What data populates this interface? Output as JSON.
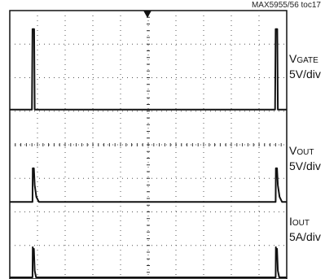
{
  "reference": "MAX5955/56 toc17",
  "colors": {
    "trace": "#111111",
    "grid": "#555555",
    "frame": "#111111"
  },
  "chart_data": {
    "type": "line",
    "grid": true,
    "grid_divisions": {
      "x": 10,
      "y": 8
    },
    "x_range_div": [
      0,
      10
    ],
    "channels": [
      {
        "symbol": "V",
        "subscript": "GATE",
        "scale": "5V/div",
        "baseline_div": 5.0,
        "points": [
          [
            0,
            0
          ],
          [
            0.8,
            0
          ],
          [
            0.82,
            2.4
          ],
          [
            0.88,
            2.4
          ],
          [
            0.9,
            0
          ],
          [
            9.58,
            0
          ],
          [
            9.6,
            2.4
          ],
          [
            9.66,
            2.4
          ],
          [
            9.68,
            0
          ],
          [
            10,
            0
          ]
        ]
      },
      {
        "symbol": "V",
        "subscript": "OUT",
        "scale": "5V/div",
        "baseline_div": 2.25,
        "points": [
          [
            0,
            0
          ],
          [
            0.82,
            0
          ],
          [
            0.83,
            1.0
          ],
          [
            0.87,
            1.0
          ],
          [
            0.9,
            0.5
          ],
          [
            0.96,
            0.15
          ],
          [
            1.05,
            0
          ],
          [
            9.6,
            0
          ],
          [
            9.61,
            1.0
          ],
          [
            9.65,
            1.0
          ],
          [
            9.68,
            0.5
          ],
          [
            9.74,
            0.15
          ],
          [
            9.83,
            0
          ],
          [
            10,
            0
          ]
        ]
      },
      {
        "symbol": "I",
        "subscript": "OUT",
        "scale": "5A/div",
        "baseline_div": 0.0,
        "points": [
          [
            0,
            0
          ],
          [
            0.82,
            0
          ],
          [
            0.83,
            0.9
          ],
          [
            0.85,
            0.6
          ],
          [
            0.87,
            0.85
          ],
          [
            0.9,
            0.2
          ],
          [
            0.95,
            0
          ],
          [
            9.6,
            0
          ],
          [
            9.61,
            0.9
          ],
          [
            9.63,
            0.6
          ],
          [
            9.65,
            0.85
          ],
          [
            9.68,
            0.2
          ],
          [
            9.73,
            0
          ],
          [
            10,
            0
          ]
        ]
      }
    ]
  }
}
